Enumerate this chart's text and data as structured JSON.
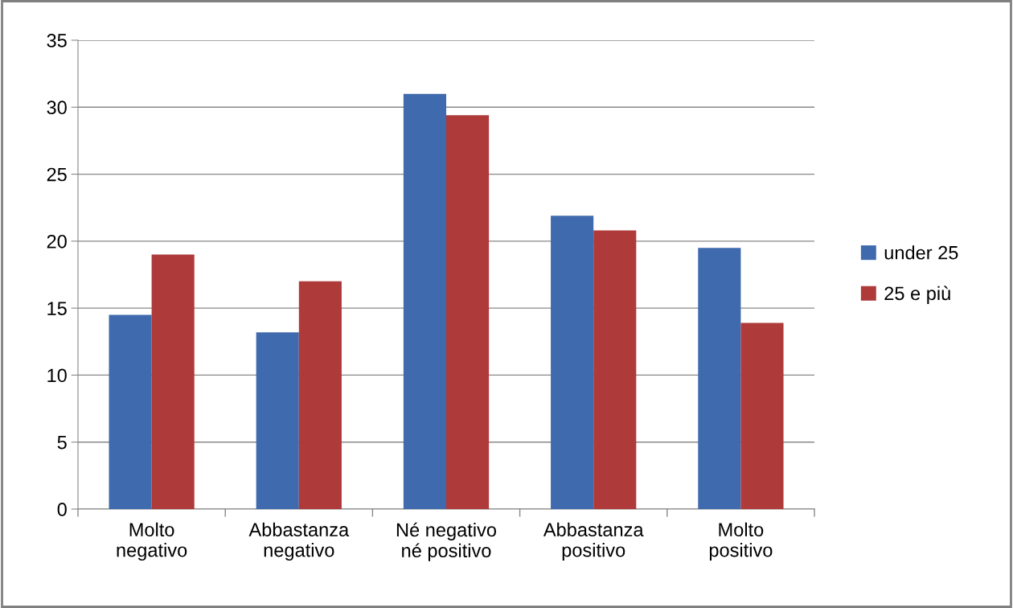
{
  "chart_data": {
    "type": "bar",
    "categories": [
      "Molto\nnegativo",
      "Abbastanza\nnegativo",
      "Né negativo\nné positivo",
      "Abbastanza\npositivo",
      "Molto\npositivo"
    ],
    "series": [
      {
        "name": "under 25",
        "color": "#3f6aad",
        "values": [
          14.5,
          13.2,
          31.0,
          21.9,
          19.5
        ]
      },
      {
        "name": "25 e più",
        "color": "#ae3a3a",
        "values": [
          19.0,
          17.0,
          29.4,
          20.8,
          13.9
        ]
      }
    ],
    "ylim": [
      0,
      35
    ],
    "yticks": [
      0,
      5,
      10,
      15,
      20,
      25,
      30,
      35
    ],
    "grid": "y",
    "legend": "right"
  }
}
